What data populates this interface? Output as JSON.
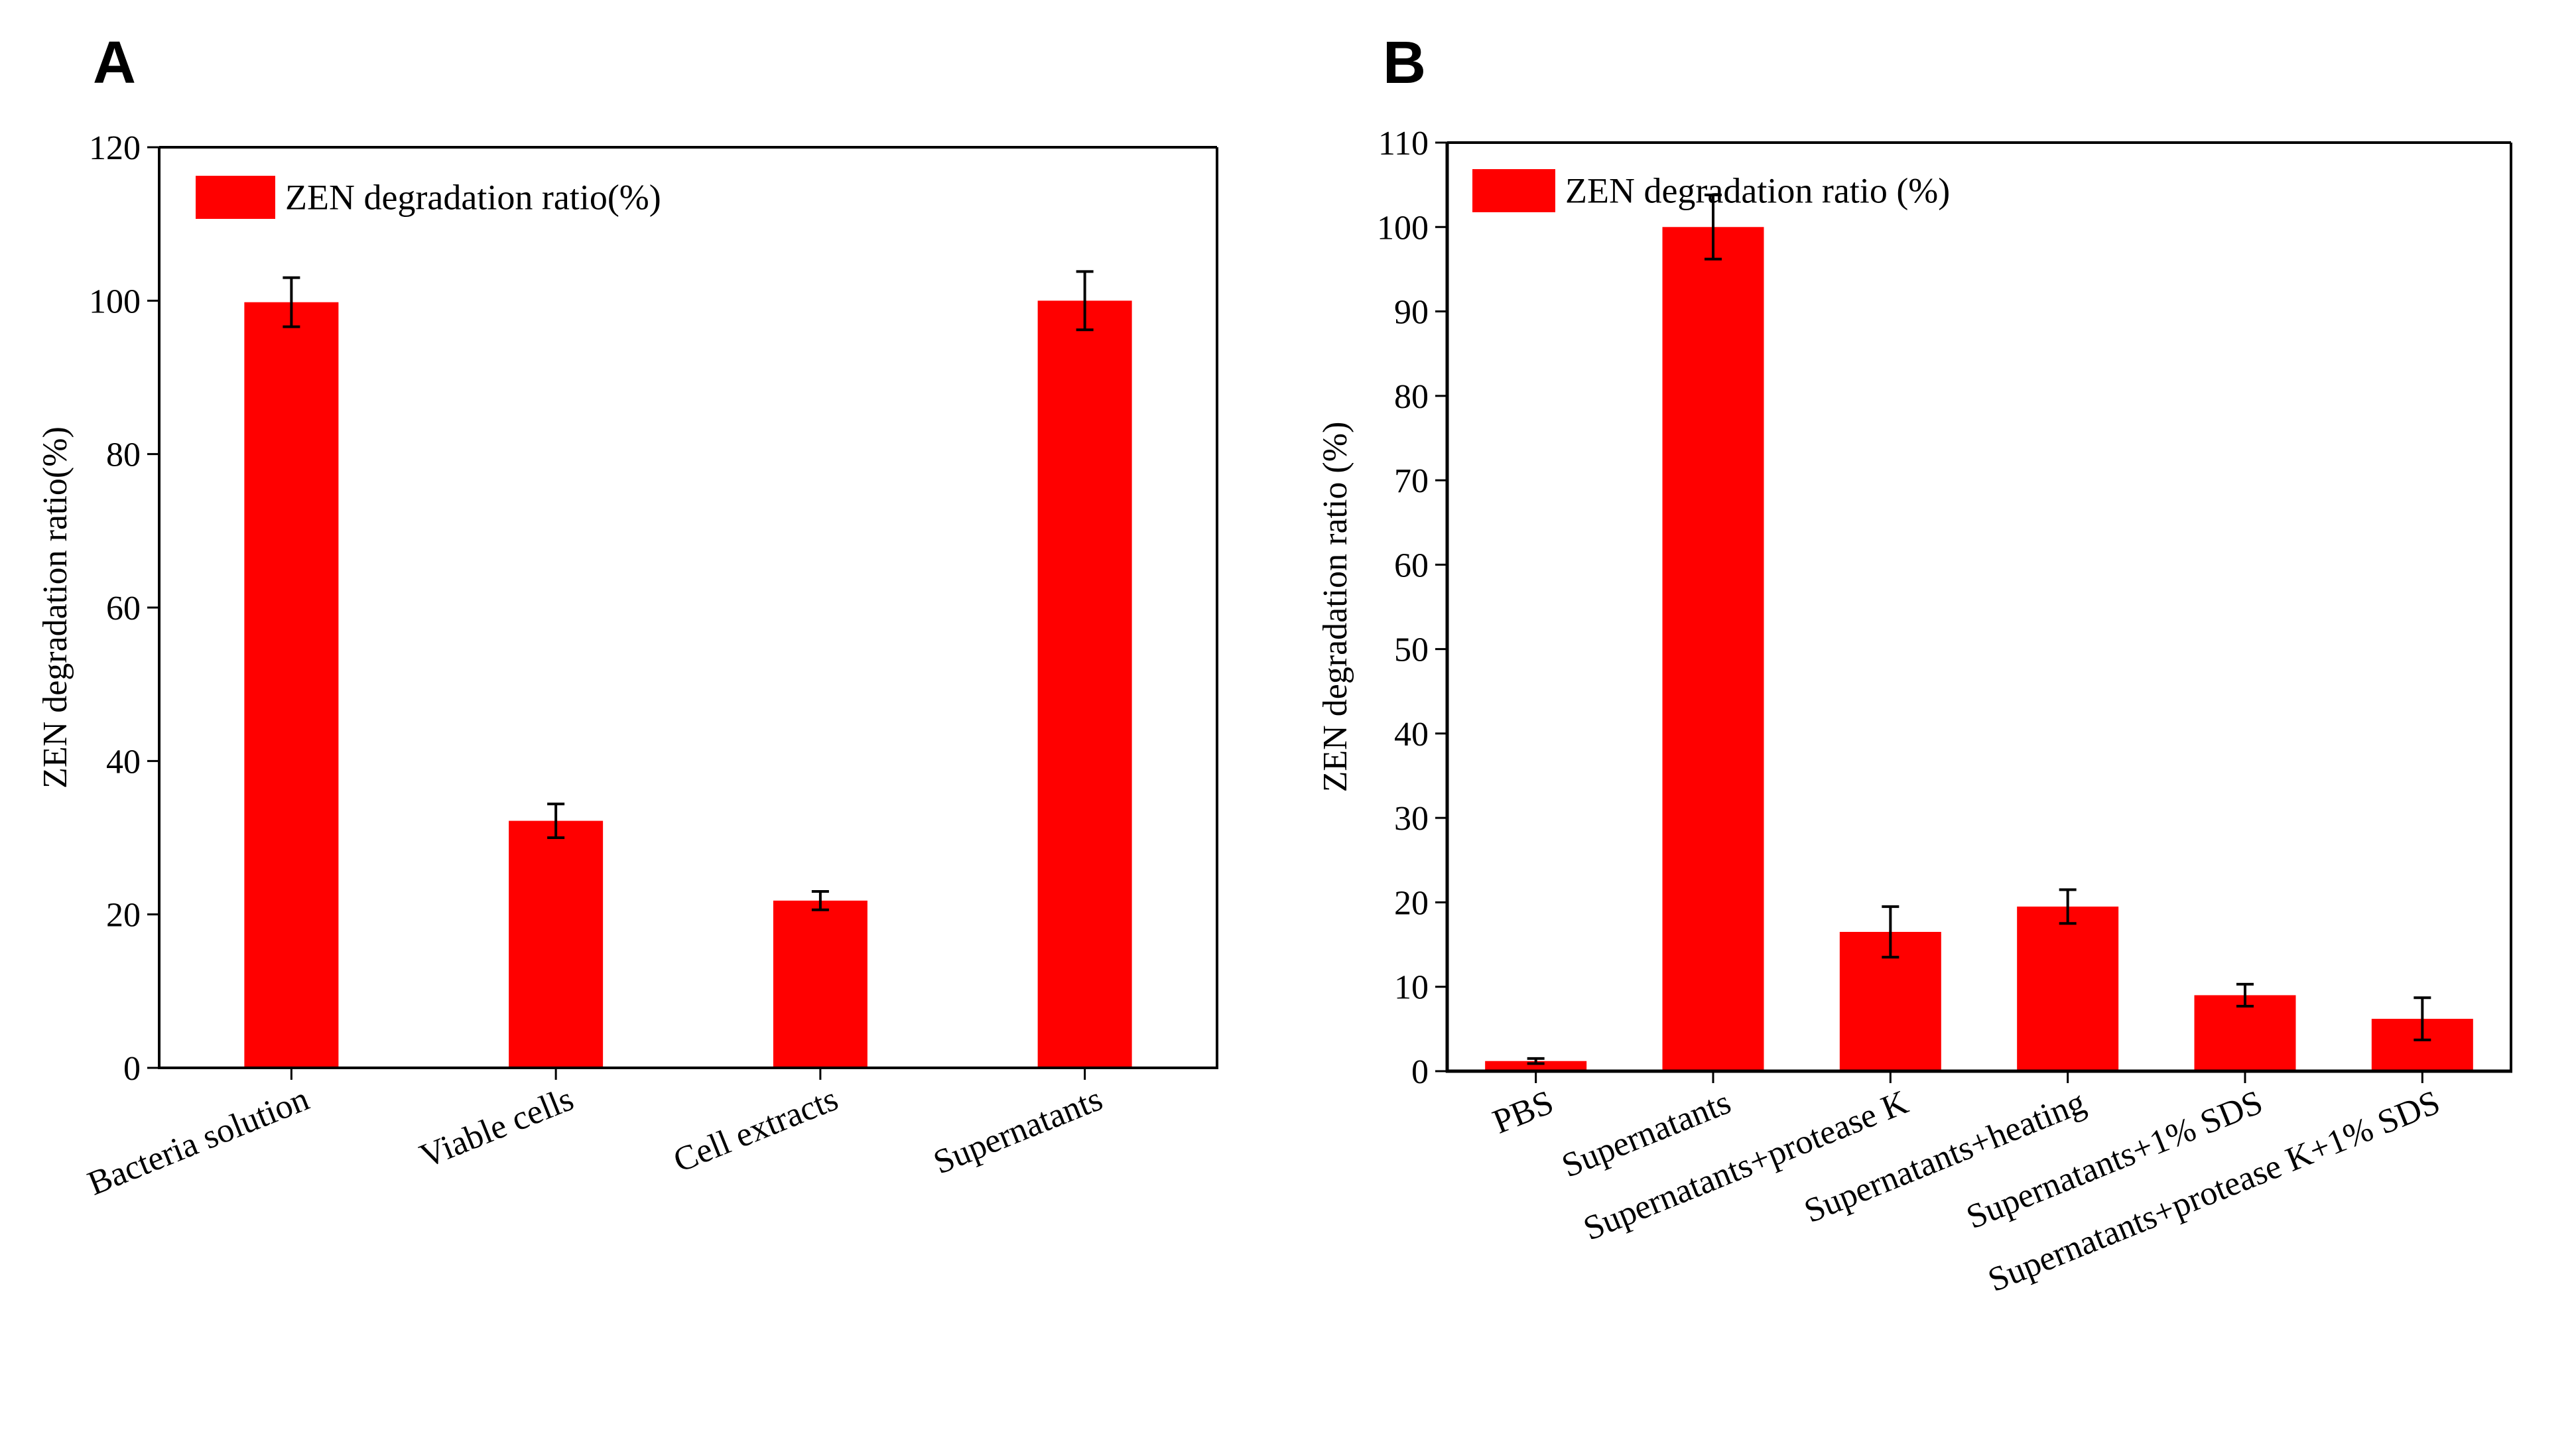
{
  "panels": [
    {
      "letter": "A"
    },
    {
      "letter": "B"
    }
  ],
  "chart_data": [
    {
      "type": "bar",
      "panel": "A",
      "title": "",
      "categories": [
        "Bacteria solution",
        "Viable cells",
        "Cell extracts",
        "Supernatants"
      ],
      "series": [
        {
          "name": "ZEN degradation ratio(%)",
          "values": [
            99.8,
            32.2,
            21.8,
            100.0
          ],
          "errors": [
            3.2,
            2.2,
            1.2,
            3.8
          ],
          "color": "#ff0000"
        }
      ],
      "xlabel": "",
      "ylabel": "ZEN degradation ratio(%)",
      "ylim": [
        0,
        120
      ],
      "yticks": [
        0,
        20,
        40,
        60,
        80,
        100,
        120
      ],
      "legend": {
        "label": "ZEN degradation ratio(%)",
        "position": "top-left"
      },
      "grid": false
    },
    {
      "type": "bar",
      "panel": "B",
      "title": "",
      "categories": [
        "PBS",
        "Supernatants",
        "Supernatants+protease K",
        "Supernatants+heating",
        "Supernatants+1% SDS",
        "Supernatants+protease K+1% SDS"
      ],
      "series": [
        {
          "name": "ZEN degradation ratio (%)",
          "values": [
            1.2,
            100.0,
            16.5,
            19.5,
            9.0,
            6.2
          ],
          "errors": [
            0.3,
            3.8,
            3.0,
            2.0,
            1.3,
            2.5
          ],
          "color": "#ff0000"
        }
      ],
      "xlabel": "",
      "ylabel": "ZEN degradation ratio (%)",
      "ylim": [
        0,
        110
      ],
      "yticks": [
        0,
        10,
        20,
        30,
        40,
        50,
        60,
        70,
        80,
        90,
        100,
        110
      ],
      "legend": {
        "label": "ZEN degradation ratio (%)",
        "position": "top-left"
      },
      "grid": false
    }
  ]
}
